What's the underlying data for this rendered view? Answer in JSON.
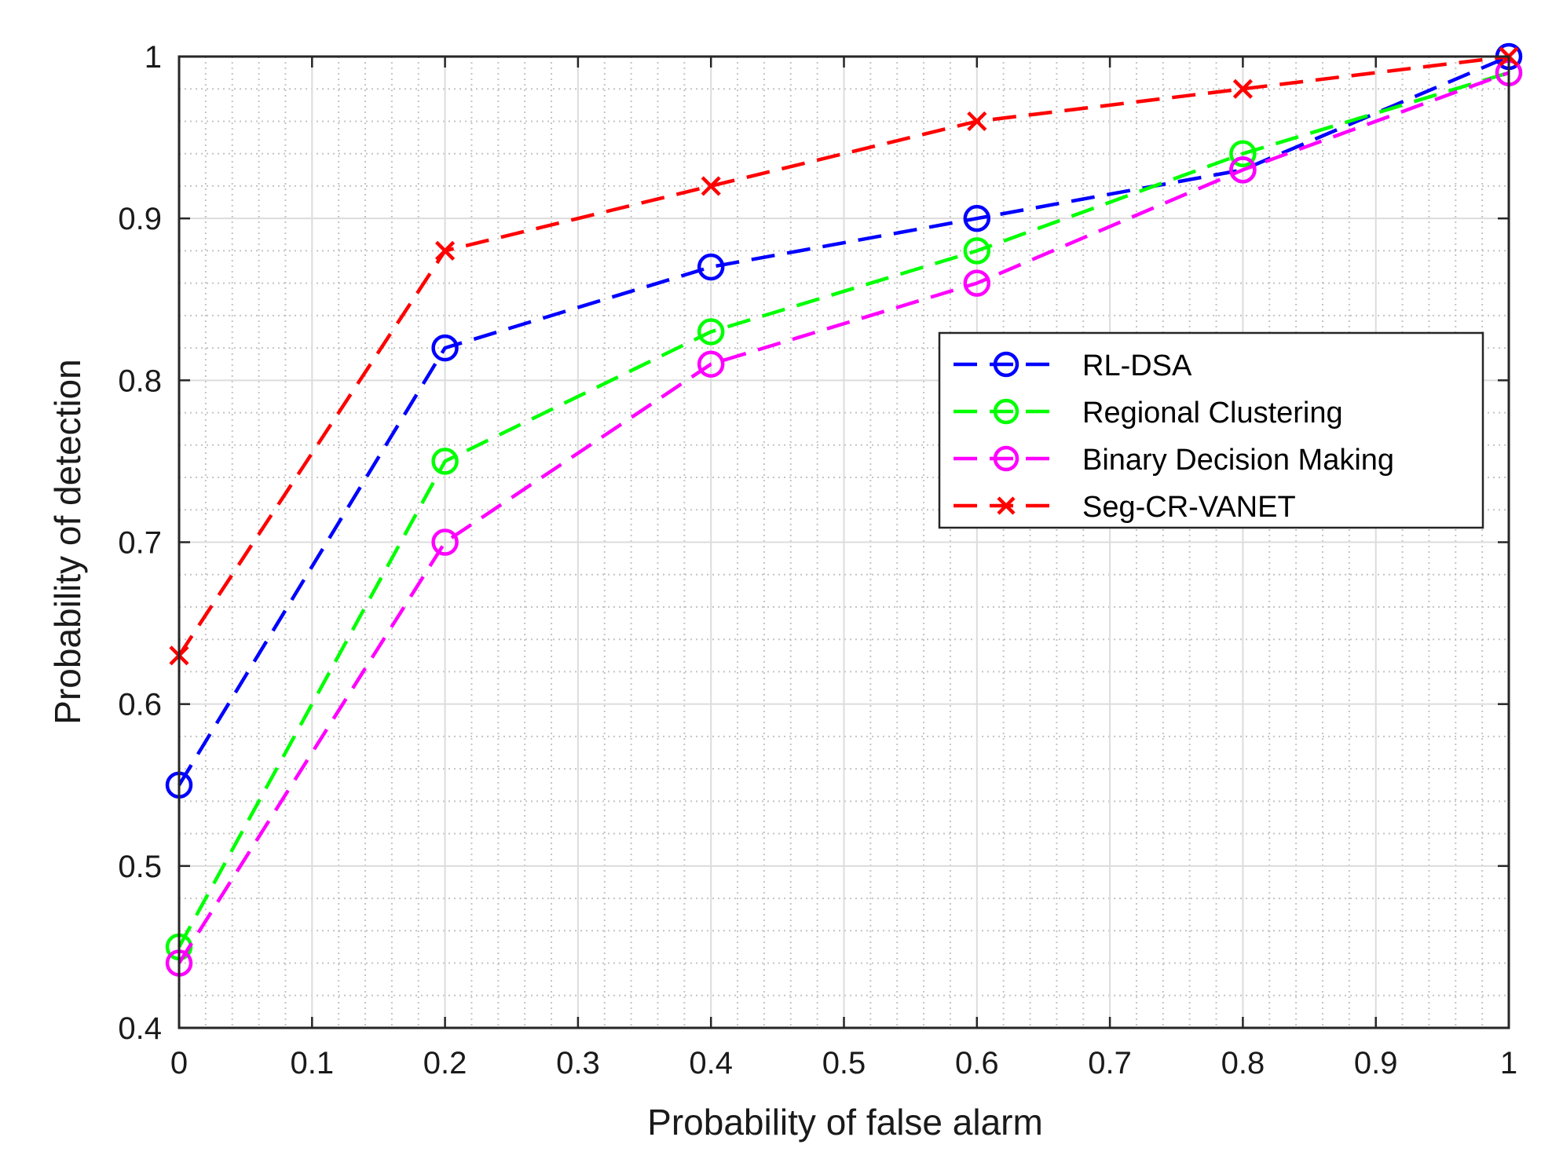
{
  "chart_data": {
    "type": "line",
    "title": "",
    "xlabel": "Probability of false alarm",
    "ylabel": "Probability of detection",
    "xlim": [
      0,
      1
    ],
    "ylim": [
      0.4,
      1
    ],
    "x": [
      0,
      0.2,
      0.4,
      0.6,
      0.8,
      1
    ],
    "xticks": [
      "0",
      "0.1",
      "0.2",
      "0.3",
      "0.4",
      "0.5",
      "0.6",
      "0.7",
      "0.8",
      "0.9",
      "1"
    ],
    "yticks": [
      "0.4",
      "0.5",
      "0.6",
      "0.7",
      "0.8",
      "0.9",
      "1"
    ],
    "grid": true,
    "minor_grid": true,
    "legend_position": "right-middle",
    "series": [
      {
        "name": "RL-DSA",
        "color": "#0000ff",
        "marker": "circle",
        "line": "dashed",
        "values": [
          0.55,
          0.82,
          0.87,
          0.9,
          0.93,
          1.0
        ]
      },
      {
        "name": "Regional Clustering",
        "color": "#00ff00",
        "marker": "circle",
        "line": "dashed",
        "values": [
          0.45,
          0.75,
          0.83,
          0.88,
          0.94,
          0.99
        ]
      },
      {
        "name": "Binary Decision Making",
        "color": "#ff00ff",
        "marker": "circle",
        "line": "dashed",
        "values": [
          0.44,
          0.7,
          0.81,
          0.86,
          0.93,
          0.99
        ]
      },
      {
        "name": "Seg-CR-VANET",
        "color": "#ff0000",
        "marker": "x",
        "line": "dashed",
        "values": [
          0.63,
          0.88,
          0.92,
          0.96,
          0.98,
          1.0
        ]
      }
    ]
  }
}
